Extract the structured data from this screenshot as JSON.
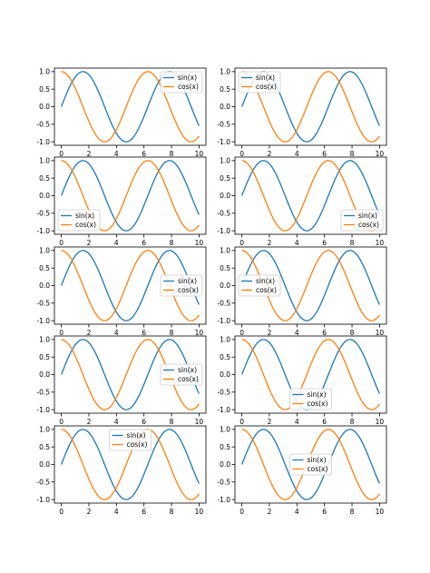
{
  "figure": {
    "colors": {
      "sin": "#1f77b4",
      "cos": "#ff7f0e",
      "axes": "#000000",
      "legend_border": "#cccccc"
    }
  },
  "chart_data": [
    {
      "type": "line",
      "x_range": [
        0,
        10
      ],
      "xlim": [
        -0.5,
        10.5
      ],
      "ylim": [
        -1.1,
        1.1
      ],
      "x_ticks": [
        "0",
        "2",
        "4",
        "6",
        "8",
        "10"
      ],
      "y_ticks": [
        "1.0",
        "0.5",
        "0.0",
        "-0.5",
        "-1.0"
      ],
      "grid": false,
      "legend_position": "upper right",
      "series": [
        {
          "name": "sin(x)",
          "function": "sin(x)",
          "color": "#1f77b4"
        },
        {
          "name": "cos(x)",
          "function": "cos(x)",
          "color": "#ff7f0e"
        }
      ]
    },
    {
      "type": "line",
      "x_range": [
        0,
        10
      ],
      "xlim": [
        -0.5,
        10.5
      ],
      "ylim": [
        -1.1,
        1.1
      ],
      "x_ticks": [
        "0",
        "2",
        "4",
        "6",
        "8",
        "10"
      ],
      "y_ticks": [
        "1.0",
        "0.5",
        "0.0",
        "-0.5",
        "-1.0"
      ],
      "grid": false,
      "legend_position": "upper left",
      "series": [
        {
          "name": "sin(x)",
          "function": "sin(x)",
          "color": "#1f77b4"
        },
        {
          "name": "cos(x)",
          "function": "cos(x)",
          "color": "#ff7f0e"
        }
      ]
    },
    {
      "type": "line",
      "x_range": [
        0,
        10
      ],
      "xlim": [
        -0.5,
        10.5
      ],
      "ylim": [
        -1.1,
        1.1
      ],
      "x_ticks": [
        "0",
        "2",
        "4",
        "6",
        "8",
        "10"
      ],
      "y_ticks": [
        "1.0",
        "0.5",
        "0.0",
        "-0.5",
        "-1.0"
      ],
      "grid": false,
      "legend_position": "lower left",
      "series": [
        {
          "name": "sin(x)",
          "function": "sin(x)",
          "color": "#1f77b4"
        },
        {
          "name": "cos(x)",
          "function": "cos(x)",
          "color": "#ff7f0e"
        }
      ]
    },
    {
      "type": "line",
      "x_range": [
        0,
        10
      ],
      "xlim": [
        -0.5,
        10.5
      ],
      "ylim": [
        -1.1,
        1.1
      ],
      "x_ticks": [
        "0",
        "2",
        "4",
        "6",
        "8",
        "10"
      ],
      "y_ticks": [
        "1.0",
        "0.5",
        "0.0",
        "-0.5",
        "-1.0"
      ],
      "grid": false,
      "legend_position": "lower right",
      "series": [
        {
          "name": "sin(x)",
          "function": "sin(x)",
          "color": "#1f77b4"
        },
        {
          "name": "cos(x)",
          "function": "cos(x)",
          "color": "#ff7f0e"
        }
      ]
    },
    {
      "type": "line",
      "x_range": [
        0,
        10
      ],
      "xlim": [
        -0.5,
        10.5
      ],
      "ylim": [
        -1.1,
        1.1
      ],
      "x_ticks": [
        "0",
        "2",
        "4",
        "6",
        "8",
        "10"
      ],
      "y_ticks": [
        "1.0",
        "0.5",
        "0.0",
        "-0.5",
        "-1.0"
      ],
      "grid": false,
      "legend_position": "right",
      "series": [
        {
          "name": "sin(x)",
          "function": "sin(x)",
          "color": "#1f77b4"
        },
        {
          "name": "cos(x)",
          "function": "cos(x)",
          "color": "#ff7f0e"
        }
      ]
    },
    {
      "type": "line",
      "x_range": [
        0,
        10
      ],
      "xlim": [
        -0.5,
        10.5
      ],
      "ylim": [
        -1.1,
        1.1
      ],
      "x_ticks": [
        "0",
        "2",
        "4",
        "6",
        "8",
        "10"
      ],
      "y_ticks": [
        "1.0",
        "0.5",
        "0.0",
        "-0.5",
        "-1.0"
      ],
      "grid": false,
      "legend_position": "center left",
      "series": [
        {
          "name": "sin(x)",
          "function": "sin(x)",
          "color": "#1f77b4"
        },
        {
          "name": "cos(x)",
          "function": "cos(x)",
          "color": "#ff7f0e"
        }
      ]
    },
    {
      "type": "line",
      "x_range": [
        0,
        10
      ],
      "xlim": [
        -0.5,
        10.5
      ],
      "ylim": [
        -1.1,
        1.1
      ],
      "x_ticks": [
        "0",
        "2",
        "4",
        "6",
        "8",
        "10"
      ],
      "y_ticks": [
        "1.0",
        "0.5",
        "0.0",
        "-0.5",
        "-1.0"
      ],
      "grid": false,
      "legend_position": "center right",
      "series": [
        {
          "name": "sin(x)",
          "function": "sin(x)",
          "color": "#1f77b4"
        },
        {
          "name": "cos(x)",
          "function": "cos(x)",
          "color": "#ff7f0e"
        }
      ]
    },
    {
      "type": "line",
      "x_range": [
        0,
        10
      ],
      "xlim": [
        -0.5,
        10.5
      ],
      "ylim": [
        -1.1,
        1.1
      ],
      "x_ticks": [
        "0",
        "2",
        "4",
        "6",
        "8",
        "10"
      ],
      "y_ticks": [
        "1.0",
        "0.5",
        "0.0",
        "-0.5",
        "-1.0"
      ],
      "grid": false,
      "legend_position": "lower center",
      "series": [
        {
          "name": "sin(x)",
          "function": "sin(x)",
          "color": "#1f77b4"
        },
        {
          "name": "cos(x)",
          "function": "cos(x)",
          "color": "#ff7f0e"
        }
      ]
    },
    {
      "type": "line",
      "x_range": [
        0,
        10
      ],
      "xlim": [
        -0.5,
        10.5
      ],
      "ylim": [
        -1.1,
        1.1
      ],
      "x_ticks": [
        "0",
        "2",
        "4",
        "6",
        "8",
        "10"
      ],
      "y_ticks": [
        "1.0",
        "0.5",
        "0.0",
        "-0.5",
        "-1.0"
      ],
      "grid": false,
      "legend_position": "upper center",
      "series": [
        {
          "name": "sin(x)",
          "function": "sin(x)",
          "color": "#1f77b4"
        },
        {
          "name": "cos(x)",
          "function": "cos(x)",
          "color": "#ff7f0e"
        }
      ]
    },
    {
      "type": "line",
      "x_range": [
        0,
        10
      ],
      "xlim": [
        -0.5,
        10.5
      ],
      "ylim": [
        -1.1,
        1.1
      ],
      "x_ticks": [
        "0",
        "2",
        "4",
        "6",
        "8",
        "10"
      ],
      "y_ticks": [
        "1.0",
        "0.5",
        "0.0",
        "-0.5",
        "-1.0"
      ],
      "grid": false,
      "legend_position": "center",
      "series": [
        {
          "name": "sin(x)",
          "function": "sin(x)",
          "color": "#1f77b4"
        },
        {
          "name": "cos(x)",
          "function": "cos(x)",
          "color": "#ff7f0e"
        }
      ]
    }
  ]
}
